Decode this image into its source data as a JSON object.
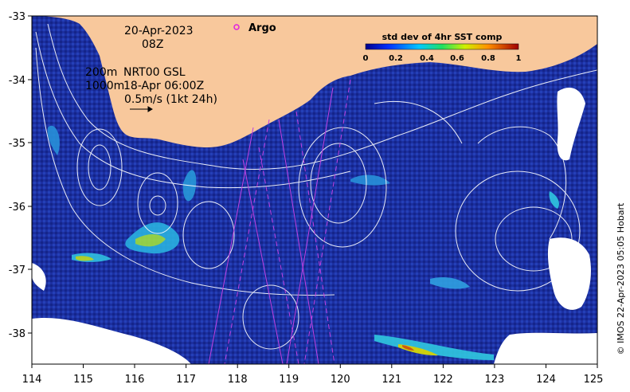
{
  "map": {
    "date_line1": "20-Apr-2023",
    "date_line2": "08Z",
    "depth_line1": "200m",
    "depth_line2": "1000m",
    "model_line1": "NRT00 GSL",
    "model_line2": "18-Apr 06:00Z",
    "scale_label": "0.5m/s (1kt 24h)",
    "argo_label": "Argo",
    "credit": "© IMOS 22-Apr-2023 05:05 Hobart"
  },
  "colorbar": {
    "title": "std dev of 4hr SST comp",
    "ticks": [
      "0",
      "0.2",
      "0.4",
      "0.6",
      "0.8",
      "1"
    ]
  },
  "axes": {
    "x_ticks": [
      "114",
      "115",
      "116",
      "117",
      "118",
      "119",
      "120",
      "121",
      "122",
      "123",
      "124",
      "125"
    ],
    "y_ticks": [
      "-33",
      "-34",
      "-35",
      "-36",
      "-37",
      "-38"
    ]
  },
  "colors": {
    "land": "#f8c89c",
    "ocean": "#1a2f9a",
    "argo_marker": "#e020e0",
    "track_line": "#c040e0",
    "contour": "#ffffff"
  }
}
